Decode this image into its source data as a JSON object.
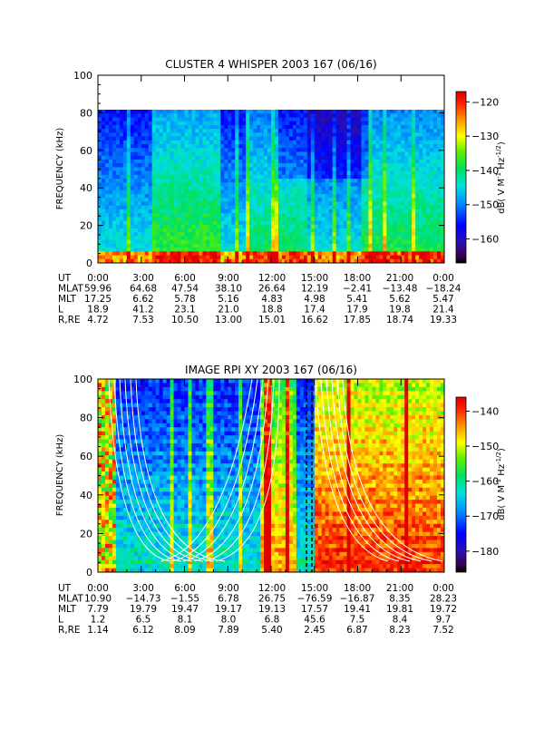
{
  "chart_data": [
    {
      "type": "heatmap",
      "title": "CLUSTER 4 WHISPER 2003 167 (06/16)",
      "ylabel": "FREQUENCY (kHz)",
      "yticks": [
        "0",
        "20",
        "40",
        "60",
        "80",
        "100"
      ],
      "ylim": [
        0,
        100
      ],
      "data_ymax": 80,
      "xticks": [
        "0:00",
        "3:00",
        "6:00",
        "9:00",
        "12:00",
        "15:00",
        "18:00",
        "21:00",
        "0:00"
      ],
      "colorbar_label": "dB( V M",
      "colorbar_label_exp1": "-1",
      "colorbar_label_mid": " Hz",
      "colorbar_label_exp2": "-1/2",
      "colorbar_label_end": ")",
      "colorbar_ticks": [
        "-120",
        "-130",
        "-140",
        "-150",
        "-160"
      ],
      "colorbar_range": [
        -167,
        -117
      ],
      "ephemeris": [
        {
          "label": "UT",
          "values": [
            "0:00",
            "3:00",
            "6:00",
            "9:00",
            "12:00",
            "15:00",
            "18:00",
            "21:00",
            "0:00"
          ]
        },
        {
          "label": "MLAT",
          "values": [
            "59.96",
            "64.68",
            "47.54",
            "38.10",
            "26.64",
            "12.19",
            "−2.41",
            "−13.48",
            "−18.24"
          ]
        },
        {
          "label": "MLT",
          "values": [
            "17.25",
            "6.62",
            "5.78",
            "5.16",
            "4.83",
            "4.98",
            "5.41",
            "5.62",
            "5.47"
          ]
        },
        {
          "label": "L",
          "values": [
            "18.9",
            "41.2",
            "23.1",
            "21.0",
            "18.8",
            "17.4",
            "17.9",
            "19.8",
            "21.4"
          ]
        },
        {
          "label": "R,RE",
          "values": [
            "4.72",
            "7.53",
            "10.50",
            "13.00",
            "15.01",
            "16.62",
            "17.85",
            "18.74",
            "19.33"
          ]
        }
      ]
    },
    {
      "type": "heatmap",
      "title": "IMAGE RPI XY 2003 167 (06/16)",
      "ylabel": "FREQUENCY (kHz)",
      "yticks": [
        "0",
        "20",
        "40",
        "60",
        "80",
        "100"
      ],
      "ylim": [
        0,
        100
      ],
      "xticks": [
        "0:00",
        "3:00",
        "6:00",
        "9:00",
        "12:00",
        "15:00",
        "18:00",
        "21:00",
        "0:00"
      ],
      "colorbar_label": "dB( V M",
      "colorbar_label_exp1": "-1",
      "colorbar_label_mid": " Hz",
      "colorbar_label_exp2": "-1/2",
      "colorbar_label_end": ")",
      "colorbar_ticks": [
        "-140",
        "-150",
        "-160",
        "-170",
        "-180"
      ],
      "colorbar_range": [
        -186,
        -136
      ],
      "ephemeris": [
        {
          "label": "UT",
          "values": [
            "0:00",
            "3:00",
            "6:00",
            "9:00",
            "12:00",
            "15:00",
            "18:00",
            "21:00",
            "0:00"
          ]
        },
        {
          "label": "MLAT",
          "values": [
            "10.90",
            "−14.73",
            "−1.55",
            "6.78",
            "26.75",
            "−76.59",
            "−16.87",
            "8.35",
            "28.23"
          ]
        },
        {
          "label": "MLT",
          "values": [
            "7.79",
            "19.79",
            "19.47",
            "19.17",
            "19.13",
            "17.57",
            "19.41",
            "19.81",
            "19.72"
          ]
        },
        {
          "label": "L",
          "values": [
            "1.2",
            "6.5",
            "8.1",
            "8.0",
            "6.8",
            "45.6",
            "7.5",
            "8.4",
            "9.7"
          ]
        },
        {
          "label": "R,RE",
          "values": [
            "1.14",
            "6.12",
            "8.09",
            "7.89",
            "5.40",
            "2.45",
            "6.87",
            "8.23",
            "7.52"
          ]
        }
      ]
    }
  ]
}
